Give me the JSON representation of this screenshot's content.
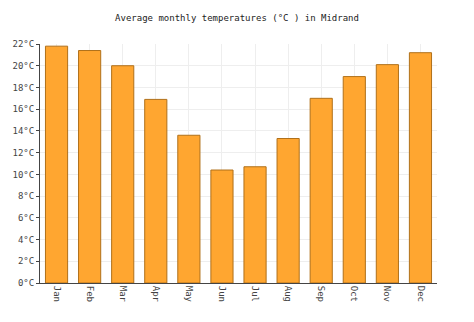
{
  "chart_data": {
    "type": "bar",
    "title": "Average monthly temperatures (°C ) in Midrand",
    "categories": [
      "Jan",
      "Feb",
      "Mar",
      "Apr",
      "May",
      "Jun",
      "Jul",
      "Aug",
      "Sep",
      "Oct",
      "Nov",
      "Dec"
    ],
    "values": [
      21.8,
      21.4,
      20.0,
      16.9,
      13.6,
      10.4,
      10.7,
      13.3,
      17.0,
      19.0,
      20.1,
      21.2
    ],
    "color": "#ffa630",
    "ylim": [
      0,
      22
    ],
    "yticks": [
      {
        "value": 0,
        "label": "0°C"
      },
      {
        "value": 2,
        "label": "2°C"
      },
      {
        "value": 4,
        "label": "4°C"
      },
      {
        "value": 6,
        "label": "6°C"
      },
      {
        "value": 8,
        "label": "8°C"
      },
      {
        "value": 10,
        "label": "10°C"
      },
      {
        "value": 12,
        "label": "12°C"
      },
      {
        "value": 14,
        "label": "14°C"
      },
      {
        "value": 16,
        "label": "16°C"
      },
      {
        "value": 18,
        "label": "18°C"
      },
      {
        "value": 20,
        "label": "20°C"
      },
      {
        "value": 22,
        "label": "22°C"
      }
    ],
    "grid": true
  }
}
